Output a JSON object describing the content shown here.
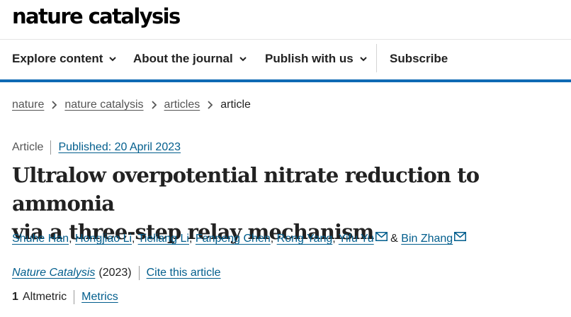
{
  "site": {
    "logo": "nature catalysis"
  },
  "nav": {
    "items": [
      {
        "label": "Explore content"
      },
      {
        "label": "About the journal"
      },
      {
        "label": "Publish with us"
      }
    ],
    "subscribe": "Subscribe"
  },
  "breadcrumb": [
    "nature",
    "nature catalysis",
    "articles",
    "article"
  ],
  "article": {
    "type": "Article",
    "published": "Published: 20 April 2023",
    "title_line1": "Ultralow overpotential nitrate reduction to ammonia",
    "title_line2": "via a three-step relay mechanism",
    "authors": [
      "Shuhe Han",
      "Hongjiao Li",
      "Tieliang Li",
      "Fanpeng Chen",
      "Rong Yang",
      "Yifu Yu",
      "Bin Zhang"
    ],
    "author_sep": ",",
    "author_amp": "&",
    "journal": "Nature Catalysis",
    "year": "(2023)",
    "cite": "Cite this article",
    "altmetric_count": "1",
    "altmetric_label": "Altmetric",
    "metrics": "Metrics"
  },
  "colors": {
    "accent": "#0f6ab4",
    "link": "#025e8d"
  }
}
